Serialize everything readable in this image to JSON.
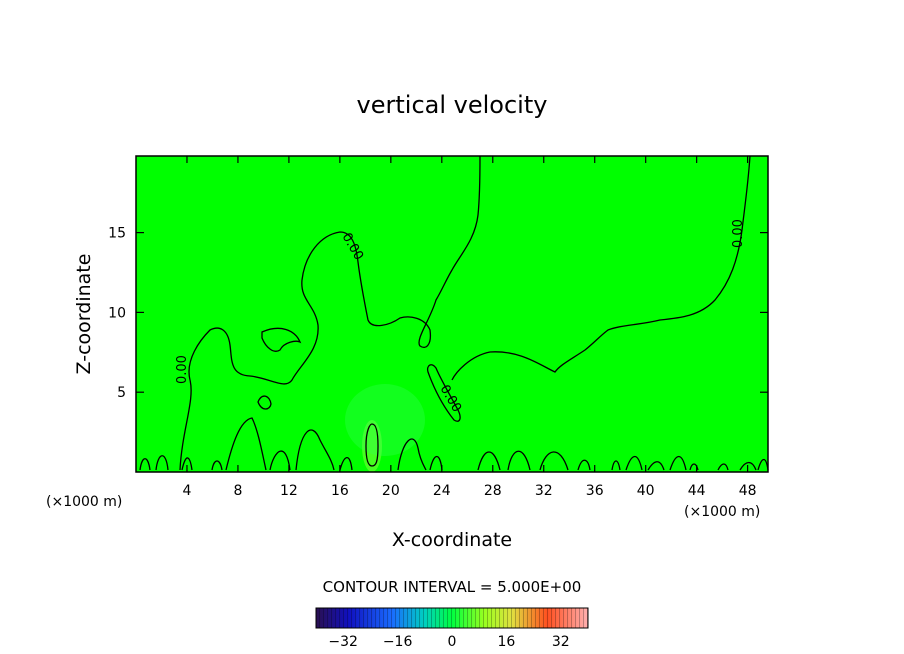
{
  "chart_data": {
    "type": "heatmap",
    "title": "vertical velocity",
    "xlabel": "X-coordinate",
    "ylabel": "Z-coordinate",
    "x_unit_label": "(×1000 m)",
    "x_unit_label_right": "(×1000 m)",
    "xlim": [
      0,
      49.6
    ],
    "ylim": [
      0,
      19.8
    ],
    "x_ticks": [
      4,
      8,
      12,
      16,
      20,
      24,
      28,
      32,
      36,
      40,
      44,
      48
    ],
    "y_ticks": [
      5,
      10,
      15
    ],
    "contour_interval_label": "CONTOUR INTERVAL = 5.000E+00",
    "contour_labels": [
      "0.00",
      "0.00",
      "0.00",
      "0.00"
    ],
    "colorbar": {
      "range": [
        -40,
        40
      ],
      "tick_values": [
        -32,
        -16,
        0,
        16,
        32
      ],
      "tick_labels": [
        "−32",
        "−16",
        "0",
        "16",
        "32"
      ]
    },
    "background_color": "#00ff00"
  }
}
